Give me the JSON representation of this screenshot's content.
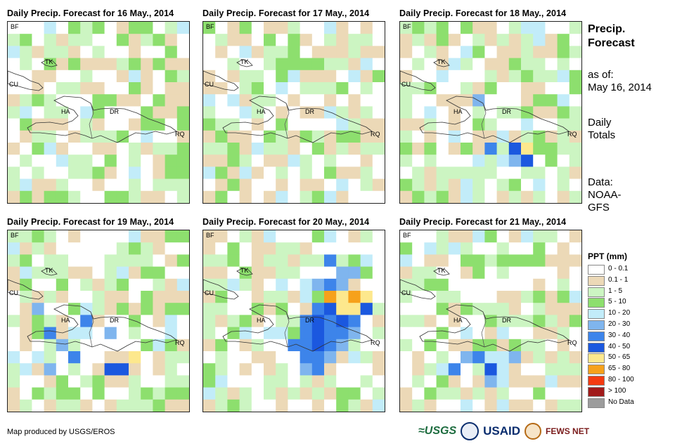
{
  "panels": [
    {
      "title": "Daily Precip. Forecast for 16 May., 2014",
      "seed": 16,
      "storm": []
    },
    {
      "title": "Daily Precip. Forecast for 17 May., 2014",
      "seed": 17,
      "storm": []
    },
    {
      "title": "Daily Precip. Forecast for 18 May., 2014",
      "seed": 18,
      "storm": [
        [
          9,
          10,
          7
        ],
        [
          10,
          10,
          8
        ],
        [
          9,
          11,
          5
        ],
        [
          10,
          11,
          7
        ],
        [
          8,
          11,
          4
        ],
        [
          6,
          11,
          4
        ],
        [
          7,
          10,
          6
        ],
        [
          6,
          6,
          5
        ]
      ]
    },
    {
      "title": "Daily Precip. Forecast for 19 May., 2014",
      "seed": 19,
      "storm": [
        [
          6,
          7,
          6
        ],
        [
          3,
          8,
          6
        ],
        [
          2,
          6,
          5
        ],
        [
          5,
          10,
          6
        ],
        [
          8,
          11,
          7
        ],
        [
          9,
          11,
          7
        ],
        [
          10,
          10,
          8
        ],
        [
          8,
          8,
          5
        ],
        [
          4,
          9,
          5
        ],
        [
          3,
          11,
          5
        ]
      ]
    },
    {
      "title": "Daily Precip. Forecast for 20 May., 2014",
      "seed": 20,
      "storm": [
        [
          10,
          5,
          9
        ],
        [
          11,
          5,
          8
        ],
        [
          12,
          5,
          9
        ],
        [
          13,
          5,
          8
        ],
        [
          9,
          6,
          6
        ],
        [
          10,
          6,
          7
        ],
        [
          11,
          6,
          8
        ],
        [
          12,
          6,
          8
        ],
        [
          13,
          6,
          7
        ],
        [
          8,
          7,
          6
        ],
        [
          9,
          7,
          7
        ],
        [
          10,
          7,
          6
        ],
        [
          11,
          7,
          7
        ],
        [
          12,
          7,
          6
        ],
        [
          8,
          8,
          6
        ],
        [
          9,
          8,
          7
        ],
        [
          10,
          8,
          6
        ],
        [
          11,
          8,
          6
        ],
        [
          12,
          8,
          5
        ],
        [
          7,
          9,
          6
        ],
        [
          8,
          9,
          6
        ],
        [
          9,
          9,
          7
        ],
        [
          10,
          9,
          6
        ],
        [
          11,
          9,
          5
        ],
        [
          8,
          10,
          6
        ],
        [
          9,
          10,
          6
        ],
        [
          10,
          10,
          5
        ],
        [
          8,
          11,
          5
        ],
        [
          9,
          11,
          6
        ],
        [
          10,
          2,
          6
        ],
        [
          11,
          3,
          5
        ],
        [
          12,
          3,
          5
        ],
        [
          9,
          4,
          5
        ],
        [
          10,
          4,
          6
        ],
        [
          11,
          4,
          5
        ]
      ]
    },
    {
      "title": "Daily Precip. Forecast for 21 May., 2014",
      "seed": 21,
      "storm": [
        [
          7,
          11,
          7
        ],
        [
          7,
          12,
          5
        ],
        [
          8,
          11,
          4
        ],
        [
          9,
          10,
          5
        ],
        [
          8,
          10,
          4
        ],
        [
          6,
          10,
          6
        ],
        [
          5,
          10,
          5
        ],
        [
          4,
          11,
          6
        ]
      ]
    }
  ],
  "map_labels": [
    "BF",
    "TK",
    "CU",
    "HA",
    "DR",
    "RQ"
  ],
  "sidebar": {
    "title_line1": "Precip.",
    "title_line2": "Forecast",
    "asof_line1": "as of:",
    "asof_line2": "May 16, 2014",
    "totals_line1": "Daily",
    "totals_line2": "Totals",
    "data_line1": "Data:",
    "data_line2": "NOAA-",
    "data_line3": "GFS"
  },
  "legend": {
    "title": "PPT (mm)",
    "items": [
      {
        "label": "0 - 0.1",
        "color": "#ffffff"
      },
      {
        "label": "0.1 - 1",
        "color": "#ecd9b7"
      },
      {
        "label": "1 - 5",
        "color": "#ccf5c2"
      },
      {
        "label": "5 - 10",
        "color": "#8ddf6e"
      },
      {
        "label": "10 - 20",
        "color": "#c2ecf9"
      },
      {
        "label": "20 - 30",
        "color": "#7fb5ee"
      },
      {
        "label": "30 - 40",
        "color": "#3d84ea"
      },
      {
        "label": "40 - 50",
        "color": "#1b58df"
      },
      {
        "label": "50 - 65",
        "color": "#fde88d"
      },
      {
        "label": "65 - 80",
        "color": "#f6a11b"
      },
      {
        "label": "80 - 100",
        "color": "#f43b11"
      },
      {
        "label": "> 100",
        "color": "#a11a1a"
      },
      {
        "label": "No Data",
        "color": "#9c9c9c"
      }
    ]
  },
  "footer": {
    "credit": "Map produced by USGS/EROS",
    "logo_usgs": "≈USGS",
    "logo_usaid": "USAID",
    "logo_fews": "FEWS NET"
  }
}
